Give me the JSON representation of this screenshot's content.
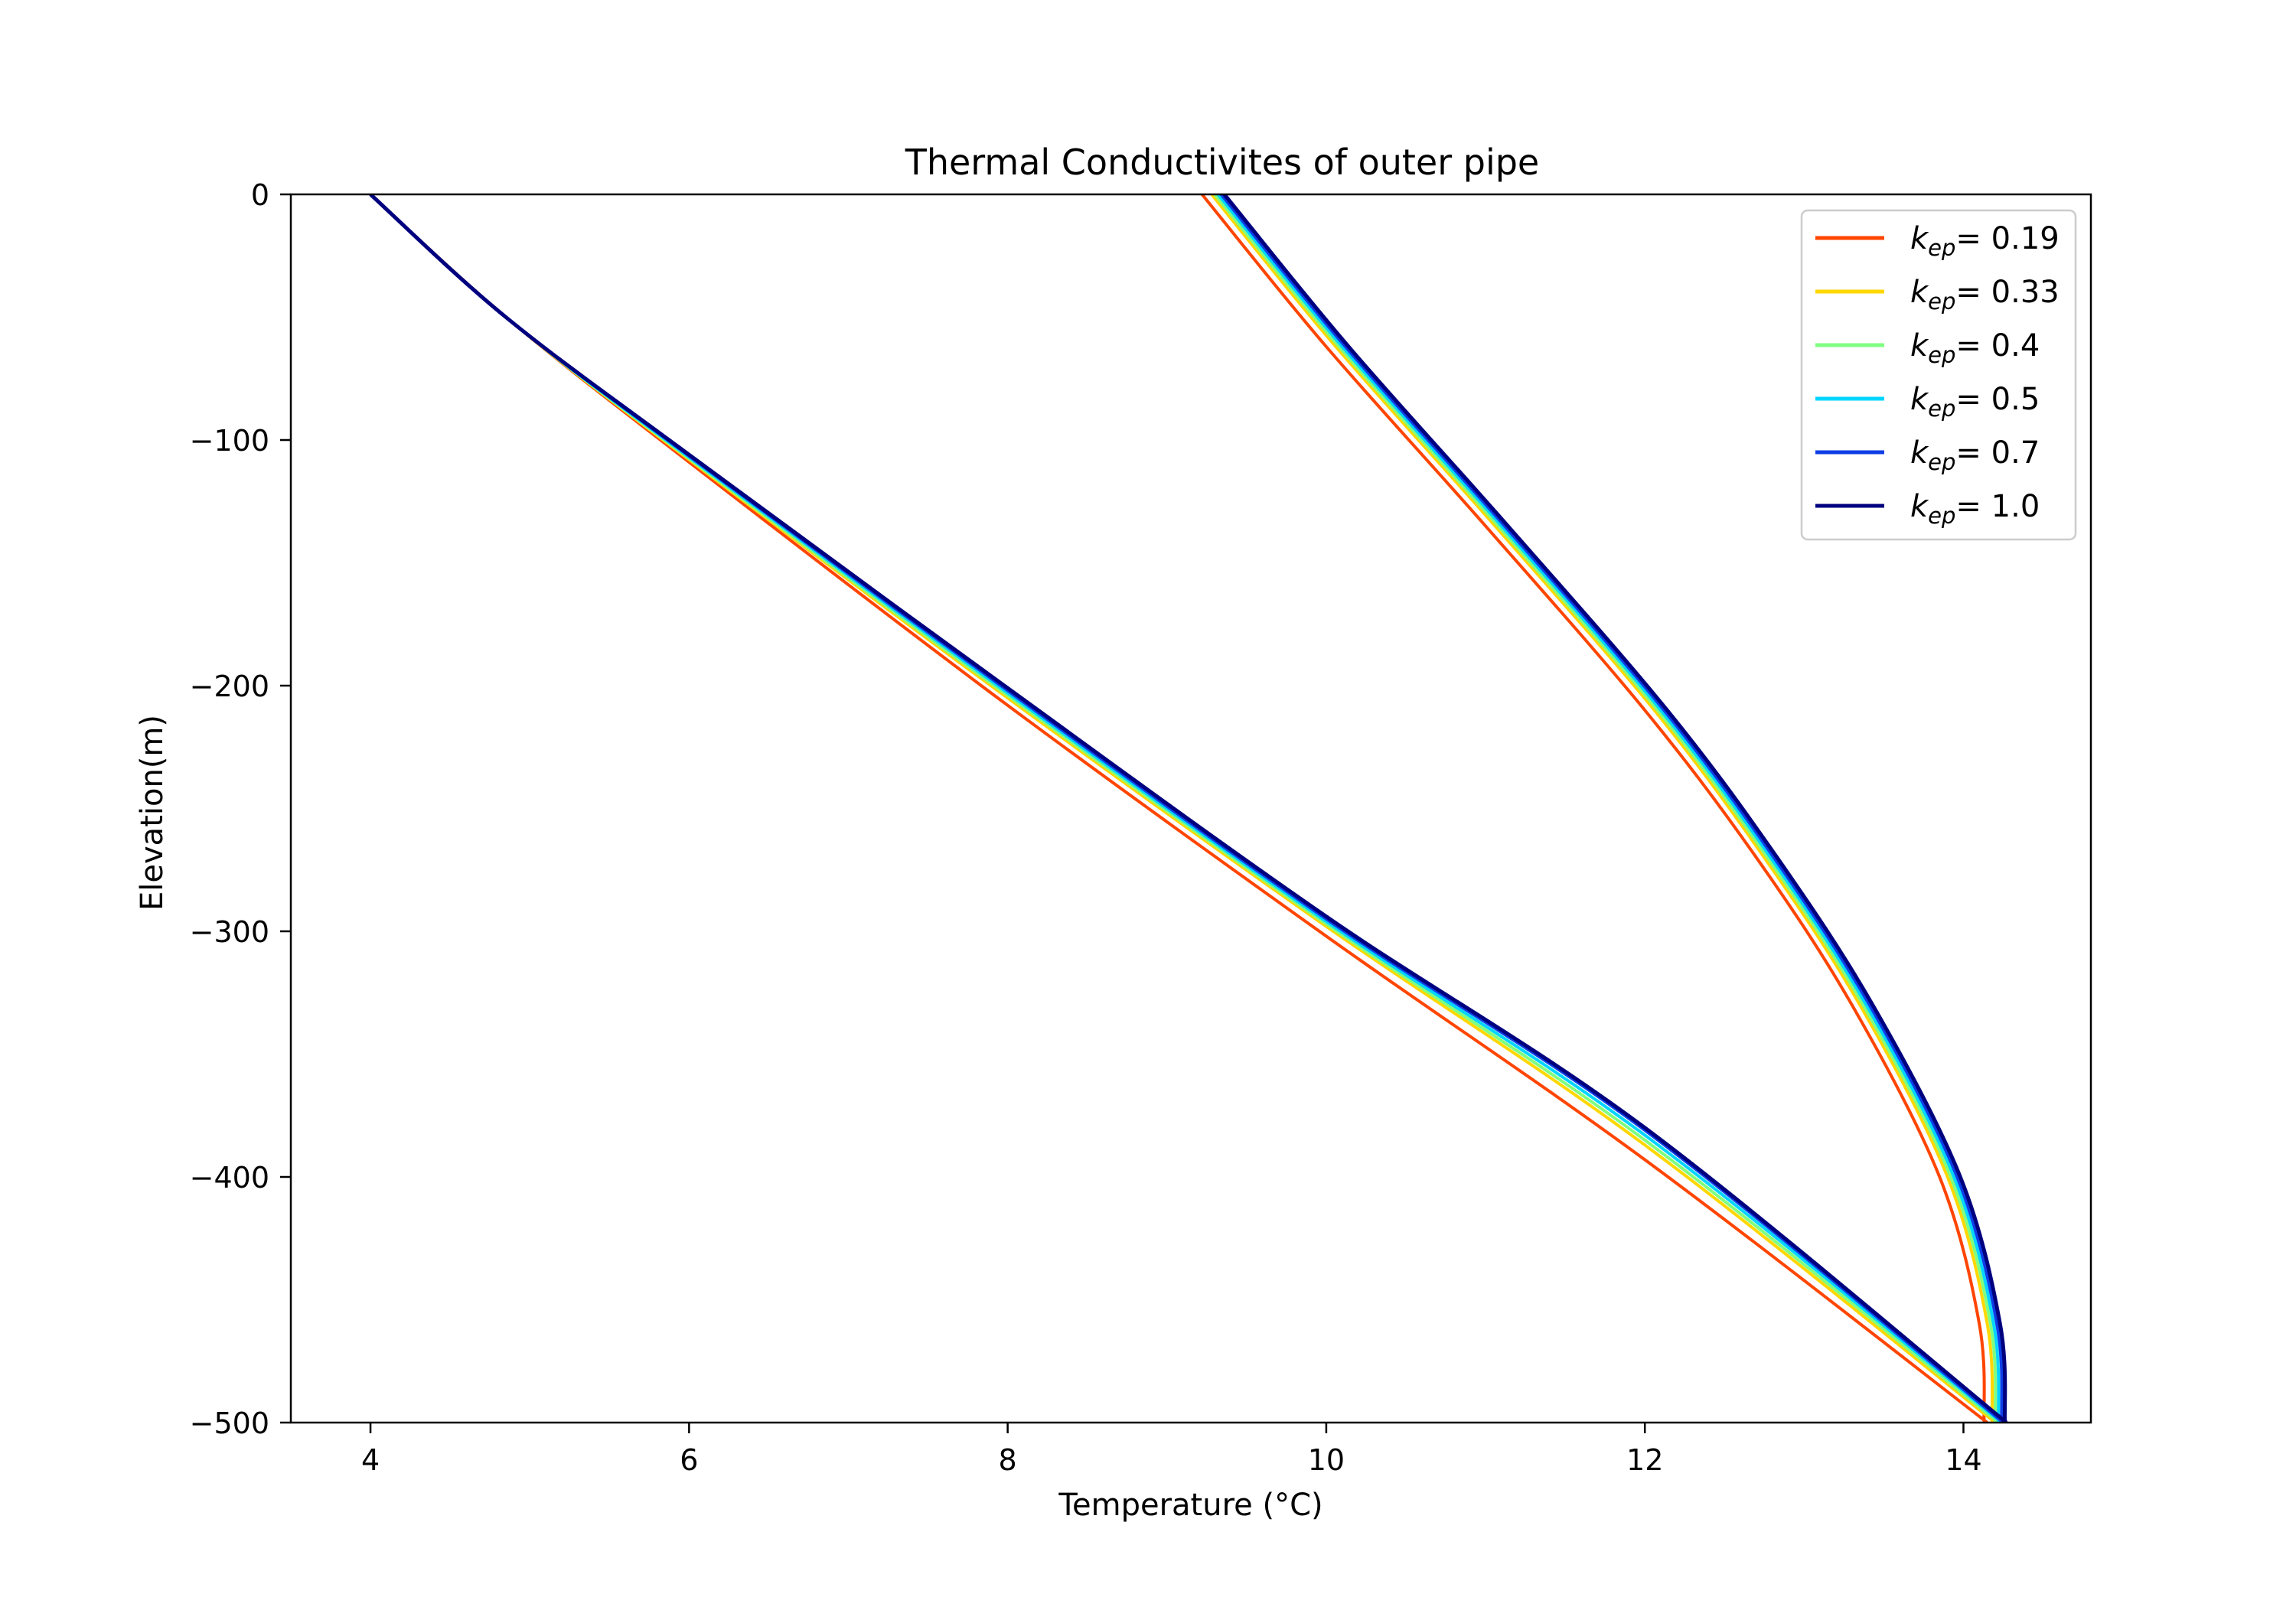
{
  "chart_data": {
    "type": "line",
    "title": "Thermal Conductivites of outer pipe",
    "xlabel": "Temperature (°C)",
    "ylabel": "Elevation(m)",
    "xlim": [
      3.5,
      14.8
    ],
    "ylim": [
      -500,
      0
    ],
    "xticks": [
      4,
      6,
      8,
      10,
      12,
      14
    ],
    "xtick_labels": [
      "4",
      "6",
      "8",
      "10",
      "12",
      "14"
    ],
    "yticks": [
      0,
      -100,
      -200,
      -300,
      -400,
      -500
    ],
    "ytick_labels": [
      "0",
      "−100",
      "−200",
      "−300",
      "−400",
      "−500"
    ],
    "grid": false,
    "legend_position": "top-right",
    "series": [
      {
        "name_symbol": "k",
        "name_subscript": "ep",
        "name_value": "= 0.19",
        "color": "#ff4500",
        "descending": {
          "x": [
            4.0,
            4.85,
            6.0,
            8.0,
            10.0,
            12.0,
            14.15
          ],
          "y": [
            0,
            -50,
            -109,
            -208,
            -302,
            -393,
            -500
          ]
        },
        "ascending": {
          "x": [
            14.13,
            14.1,
            13.85,
            13.3,
            12.7,
            12.0,
            11.0,
            10.0,
            9.22
          ],
          "y": [
            -500,
            -460,
            -400,
            -330,
            -270,
            -210,
            -135,
            -62,
            0
          ]
        }
      },
      {
        "name_symbol": "k",
        "name_subscript": "ep",
        "name_value": "= 0.33",
        "color": "#ffd700",
        "descending": {
          "x": [
            4.0,
            4.85,
            6.0,
            8.0,
            10.0,
            12.0,
            14.2
          ],
          "y": [
            0,
            -50,
            -108,
            -205,
            -298,
            -387,
            -500
          ]
        },
        "ascending": {
          "x": [
            14.18,
            14.15,
            13.9,
            13.35,
            12.75,
            12.06,
            11.06,
            10.06,
            9.28
          ],
          "y": [
            -500,
            -460,
            -400,
            -330,
            -270,
            -210,
            -135,
            -62,
            0
          ]
        }
      },
      {
        "name_symbol": "k",
        "name_subscript": "ep",
        "name_value": "= 0.4",
        "color": "#7fff7f",
        "descending": {
          "x": [
            4.0,
            4.85,
            6.0,
            8.0,
            10.0,
            12.0,
            14.22
          ],
          "y": [
            0,
            -50,
            -107.5,
            -204,
            -297,
            -385,
            -500
          ]
        },
        "ascending": {
          "x": [
            14.2,
            14.17,
            13.92,
            13.37,
            12.77,
            12.08,
            11.08,
            10.08,
            9.3
          ],
          "y": [
            -500,
            -460,
            -400,
            -330,
            -270,
            -210,
            -135,
            -62,
            0
          ]
        }
      },
      {
        "name_symbol": "k",
        "name_subscript": "ep",
        "name_value": "= 0.5",
        "color": "#00d5ff",
        "descending": {
          "x": [
            4.0,
            4.85,
            6.0,
            8.0,
            10.0,
            12.0,
            14.24
          ],
          "y": [
            0,
            -50,
            -107,
            -203,
            -296,
            -383,
            -500
          ]
        },
        "ascending": {
          "x": [
            14.22,
            14.19,
            13.94,
            13.39,
            12.79,
            12.1,
            11.1,
            10.1,
            9.32
          ],
          "y": [
            -500,
            -460,
            -400,
            -330,
            -270,
            -210,
            -135,
            -62,
            0
          ]
        }
      },
      {
        "name_symbol": "k",
        "name_subscript": "ep",
        "name_value": "= 0.7",
        "color": "#0d3ee5",
        "descending": {
          "x": [
            4.0,
            4.85,
            6.0,
            8.0,
            10.0,
            12.0,
            14.25
          ],
          "y": [
            0,
            -50,
            -106.5,
            -202,
            -295,
            -381,
            -500
          ]
        },
        "ascending": {
          "x": [
            14.24,
            14.21,
            13.96,
            13.41,
            12.81,
            12.12,
            11.12,
            10.12,
            9.34
          ],
          "y": [
            -500,
            -460,
            -400,
            -330,
            -270,
            -210,
            -135,
            -62,
            0
          ]
        }
      },
      {
        "name_symbol": "k",
        "name_subscript": "ep",
        "name_value": "= 1.0",
        "color": "#00007f",
        "descending": {
          "x": [
            4.0,
            4.85,
            6.0,
            8.0,
            10.0,
            12.0,
            14.27
          ],
          "y": [
            0,
            -50,
            -106,
            -201,
            -294,
            -380,
            -500
          ]
        },
        "ascending": {
          "x": [
            14.26,
            14.23,
            13.98,
            13.43,
            12.83,
            12.14,
            11.14,
            10.14,
            9.36
          ],
          "y": [
            -500,
            -460,
            -400,
            -330,
            -270,
            -210,
            -135,
            -62,
            0
          ]
        }
      }
    ]
  }
}
